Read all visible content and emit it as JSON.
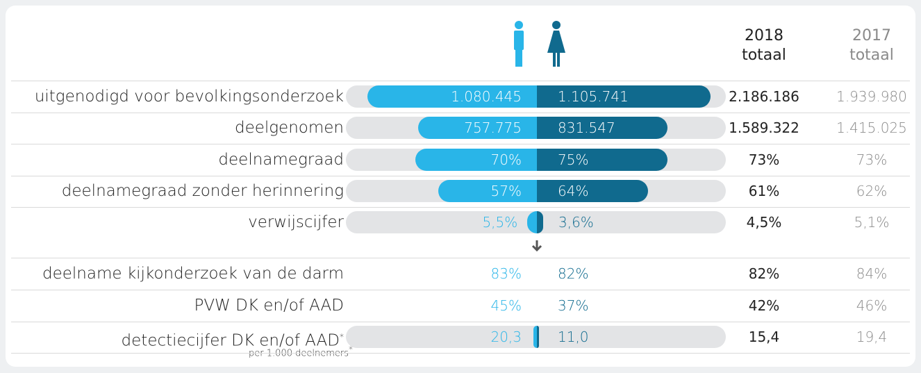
{
  "header": {
    "men_icon": "man",
    "women_icon": "woman",
    "col_2018_year": "2018",
    "col_2018_sub": "totaal",
    "col_2017_year": "2017",
    "col_2017_sub": "totaal"
  },
  "table": {
    "rows": [
      {
        "label": "uitgenodigd voor bevolkingsonderzoek",
        "men": "1.080.445",
        "women": "1.105.741",
        "total_2018": "2.186.186",
        "total_2017": "1.939.980"
      },
      {
        "label": "deelgenomen",
        "men": "757.775",
        "women": "831.547",
        "total_2018": "1.589.322",
        "total_2017": "1.415.025"
      },
      {
        "label": "deelnamegraad",
        "men": "70%",
        "women": "75%",
        "total_2018": "73%",
        "total_2017": "73%"
      },
      {
        "label": "deelnamegraad zonder herinnering",
        "men": "57%",
        "women": "64%",
        "total_2018": "61%",
        "total_2017": "62%"
      },
      {
        "label": "verwijscijfer",
        "men": "5,5%",
        "women": "3,6%",
        "total_2018": "4,5%",
        "total_2017": "5,1%"
      },
      {
        "label": "deelname kijkonderzoek van de darm",
        "men": "83%",
        "women": "82%",
        "total_2018": "82%",
        "total_2017": "84%"
      },
      {
        "label": "PVW DK en/of AAD",
        "men": "45%",
        "women": "37%",
        "total_2018": "42%",
        "total_2017": "46%"
      },
      {
        "label": "detectiecijfer DK en/of AAD",
        "label_mark": "*",
        "men": "20,3",
        "women": "11,0",
        "total_2018": "15,4",
        "total_2017": "19,4"
      }
    ]
  },
  "footnote": {
    "text": "per 1.000 deelnemers",
    "mark": "*"
  }
}
